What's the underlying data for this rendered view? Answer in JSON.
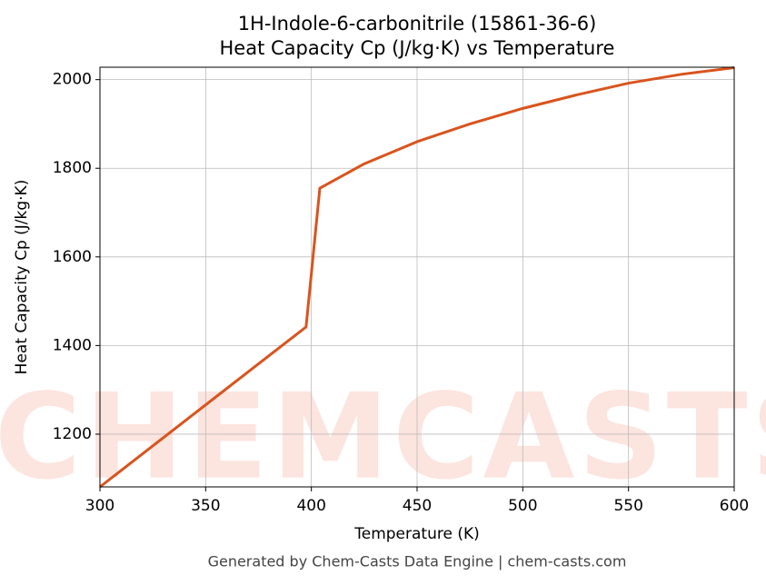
{
  "chart_data": {
    "type": "line",
    "title": [
      "1H-Indole-6-carbonitrile (15861-36-6)",
      "Heat Capacity Cp (J/kg·K) vs Temperature"
    ],
    "x_label": "Temperature (K)",
    "y_label": "Heat Capacity Cp (J/kg·K)",
    "footer": "Generated by Chem-Casts Data Engine | chem-casts.com",
    "watermark": "CHEMCASTS",
    "x": [
      300,
      397.5,
      404,
      425,
      450,
      475,
      500,
      525,
      550,
      575,
      600
    ],
    "series": [
      {
        "name": "Cp",
        "color": "#d9541e",
        "values": [
          1081,
          1442,
          1755,
          1810,
          1860,
          1900,
          1935,
          1965,
          1992,
          2012,
          2027
        ]
      }
    ],
    "xlim": [
      300,
      600
    ],
    "xticks": [
      300,
      350,
      400,
      450,
      500,
      550,
      600
    ],
    "ylim": [
      1081,
      2028
    ],
    "yticks": [
      1200,
      1400,
      1600,
      1800,
      2000
    ],
    "grid": true
  }
}
